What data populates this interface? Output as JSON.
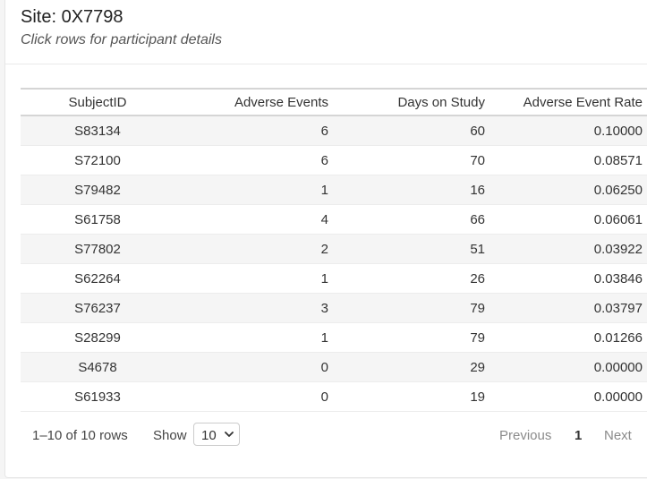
{
  "header": {
    "title": "Site: 0X7798",
    "subtitle": "Click rows for participant details"
  },
  "table": {
    "columns": [
      "SubjectID",
      "Adverse Events",
      "Days on Study",
      "Adverse Event Rate"
    ],
    "rows": [
      [
        "S83134",
        "6",
        "60",
        "0.10000"
      ],
      [
        "S72100",
        "6",
        "70",
        "0.08571"
      ],
      [
        "S79482",
        "1",
        "16",
        "0.06250"
      ],
      [
        "S61758",
        "4",
        "66",
        "0.06061"
      ],
      [
        "S77802",
        "2",
        "51",
        "0.03922"
      ],
      [
        "S62264",
        "1",
        "26",
        "0.03846"
      ],
      [
        "S76237",
        "3",
        "79",
        "0.03797"
      ],
      [
        "S28299",
        "1",
        "79",
        "0.01266"
      ],
      [
        "S4678",
        "0",
        "29",
        "0.00000"
      ],
      [
        "S61933",
        "0",
        "19",
        "0.00000"
      ]
    ]
  },
  "footer": {
    "row_info": "1–10 of 10 rows",
    "show_label": "Show",
    "page_size": "10",
    "prev_label": "Previous",
    "current_page": "1",
    "next_label": "Next"
  },
  "icons": {
    "page_size_dropdown": "chevron-down-icon"
  }
}
